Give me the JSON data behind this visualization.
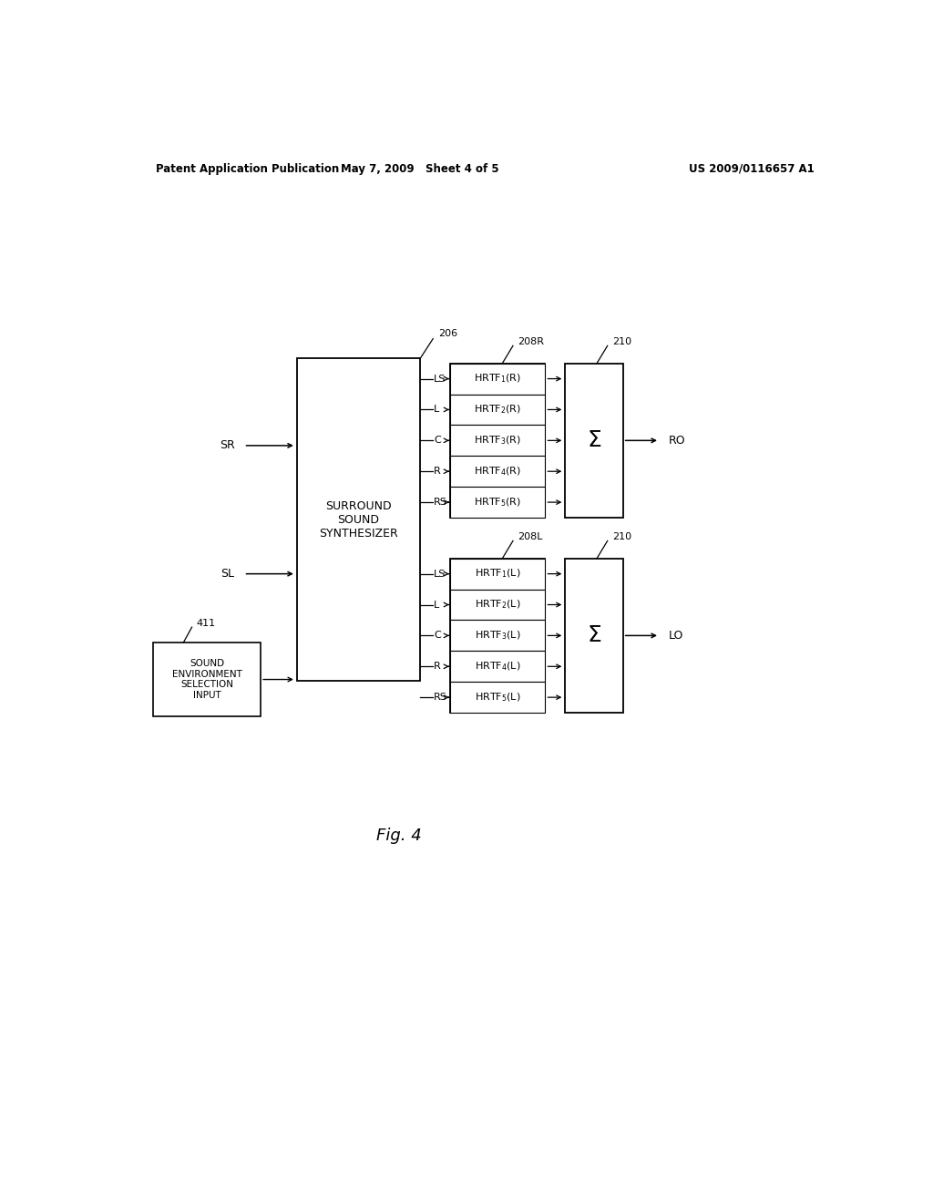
{
  "background_color": "#ffffff",
  "header_left": "Patent Application Publication",
  "header_mid": "May 7, 2009   Sheet 4 of 5",
  "header_right": "US 2009/0116657 A1",
  "fig_label": "Fig. 4",
  "synth_box_label": "SURROUND\nSOUND\nSYNTHESIZER",
  "synth_box_ref": "206",
  "sel_box_label": "SOUND\nENVIRONMENT\nSELECTION\nINPUT",
  "sel_box_ref": "411",
  "channels": [
    "LS",
    "L",
    "C",
    "R",
    "RS"
  ],
  "hrtf_R_labels": [
    "HRTF$_1$(R)",
    "HRTF$_2$(R)",
    "HRTF$_3$(R)",
    "HRTF$_4$(R)",
    "HRTF$_5$(R)"
  ],
  "hrtf_L_labels": [
    "HRTF$_1$(L)",
    "HRTF$_2$(L)",
    "HRTF$_3$(L)",
    "HRTF$_4$(L)",
    "HRTF$_5$(L)"
  ],
  "hrtf_R_ref": "208R",
  "hrtf_L_ref": "208L",
  "sum_ref": "210",
  "input_R": "SR",
  "input_L": "SL",
  "output_R": "RO",
  "output_L": "LO",
  "page_width": 10.24,
  "page_height": 13.2
}
